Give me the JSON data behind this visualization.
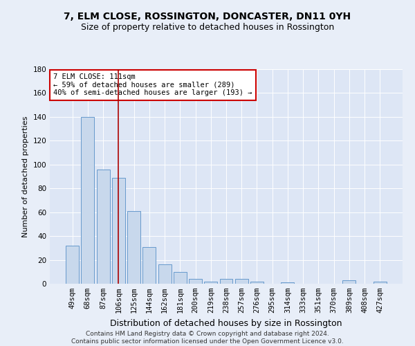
{
  "title": "7, ELM CLOSE, ROSSINGTON, DONCASTER, DN11 0YH",
  "subtitle": "Size of property relative to detached houses in Rossington",
  "xlabel": "Distribution of detached houses by size in Rossington",
  "ylabel": "Number of detached properties",
  "categories": [
    "49sqm",
    "68sqm",
    "87sqm",
    "106sqm",
    "125sqm",
    "144sqm",
    "162sqm",
    "181sqm",
    "200sqm",
    "219sqm",
    "238sqm",
    "257sqm",
    "276sqm",
    "295sqm",
    "314sqm",
    "333sqm",
    "351sqm",
    "370sqm",
    "389sqm",
    "408sqm",
    "427sqm"
  ],
  "values": [
    32,
    140,
    96,
    89,
    61,
    31,
    16,
    10,
    4,
    2,
    4,
    4,
    2,
    0,
    1,
    0,
    0,
    0,
    3,
    0,
    2
  ],
  "bar_color": "#c8d8ec",
  "bar_edge_color": "#6699cc",
  "vline_x": 3.0,
  "vline_color": "#aa0000",
  "annotation_text": "7 ELM CLOSE: 111sqm\n← 59% of detached houses are smaller (289)\n40% of semi-detached houses are larger (193) →",
  "annotation_box_color": "#ffffff",
  "annotation_box_edge": "#cc0000",
  "ylim": [
    0,
    180
  ],
  "yticks": [
    0,
    20,
    40,
    60,
    80,
    100,
    120,
    140,
    160,
    180
  ],
  "bg_color": "#e8eef8",
  "plot_bg_color": "#dde6f5",
  "footer": "Contains HM Land Registry data © Crown copyright and database right 2024.\nContains public sector information licensed under the Open Government Licence v3.0.",
  "title_fontsize": 10,
  "subtitle_fontsize": 9,
  "xlabel_fontsize": 9,
  "ylabel_fontsize": 8,
  "tick_fontsize": 7.5,
  "footer_fontsize": 6.5
}
